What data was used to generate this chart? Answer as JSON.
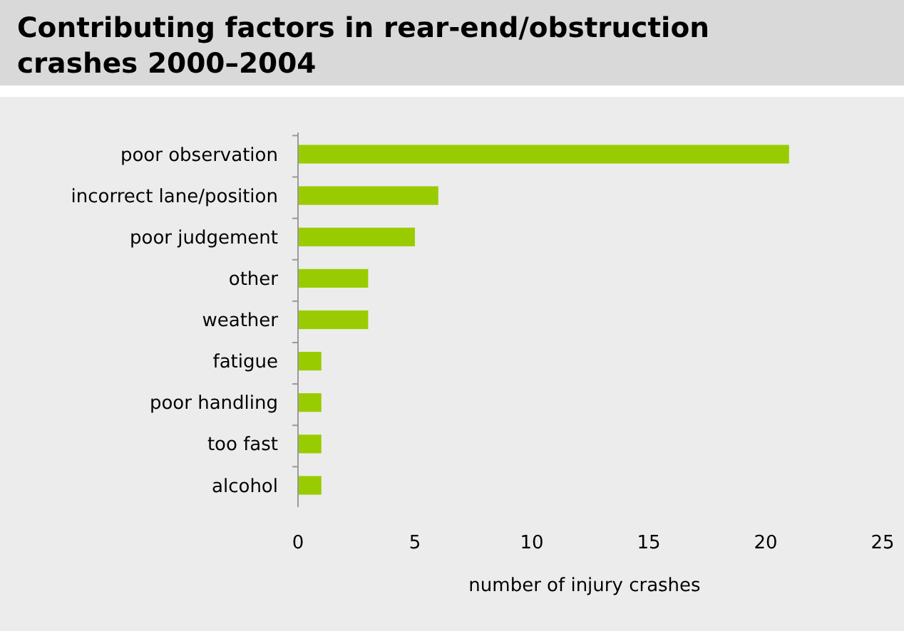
{
  "chart_data": {
    "type": "bar",
    "orientation": "horizontal",
    "title": "Contributing factors in rear-end/obstruction crashes 2000–2004",
    "xlabel": "number of injury crashes",
    "categories": [
      "poor observation",
      "incorrect lane/position",
      "poor judgement",
      "other",
      "weather",
      "fatigue",
      "poor handling",
      "too fast",
      "alcohol"
    ],
    "values": [
      21,
      6,
      5,
      3,
      3,
      1,
      1,
      1,
      1
    ],
    "color": "#99cc00",
    "xlim": [
      0,
      25
    ],
    "xticks": [
      0,
      5,
      10,
      15,
      20,
      25
    ]
  }
}
